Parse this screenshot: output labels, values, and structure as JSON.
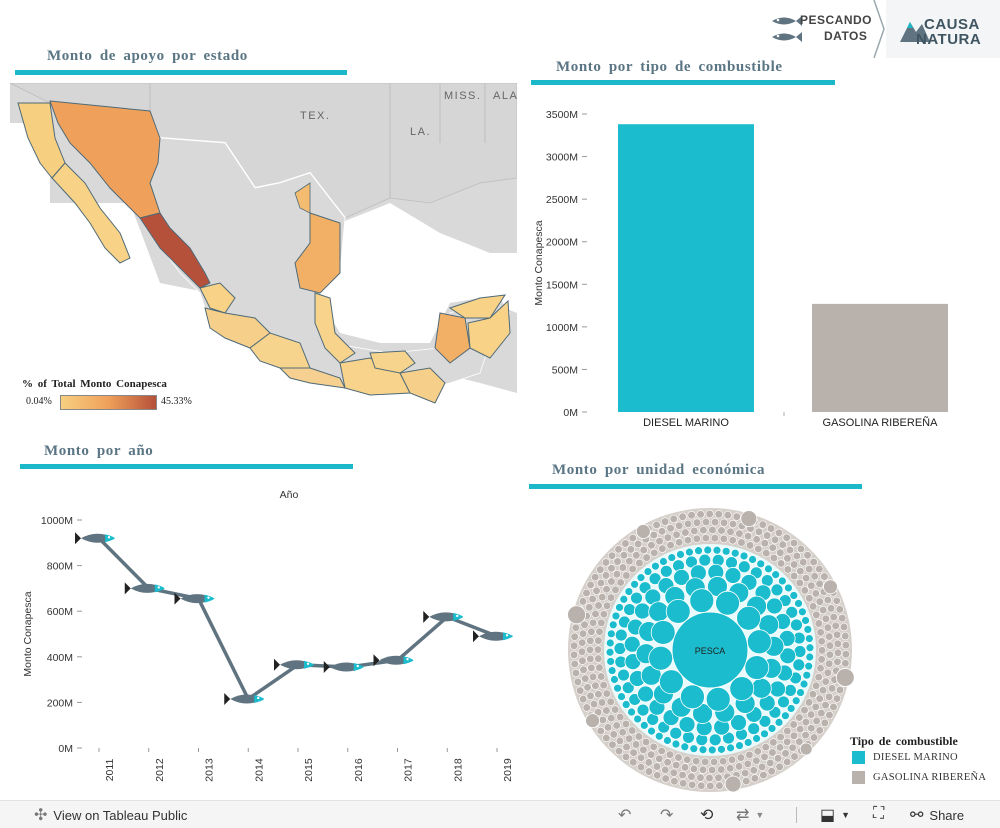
{
  "header": {
    "brand1_line1": "PESCANDO",
    "brand1_line2": "DATOS",
    "brand2_line1": "CAUSA",
    "brand2_line2": "NATURA"
  },
  "map_panel": {
    "title": "Monto de apoyo por estado",
    "labels": {
      "tex": "TEX.",
      "la": "LA.",
      "miss": "MISS.",
      "ala": "ALA"
    },
    "legend": {
      "title": "% of Total Monto Conapesca",
      "min": "0.04%",
      "max": "45.33%",
      "color_low": "#f7cf80",
      "color_high": "#b5503a"
    }
  },
  "fuel_chart": {
    "title": "Monto por tipo de combustible",
    "chart_data": {
      "type": "bar",
      "title": "Monto por tipo de combustible",
      "ylabel": "Monto Conapesca",
      "categories": [
        "DIESEL MARINO",
        "GASOLINA RIBEREÑA"
      ],
      "values": [
        3380,
        1270
      ],
      "ylim": [
        0,
        3500
      ],
      "ticks": [
        0,
        500,
        1000,
        1500,
        2000,
        2500,
        3000,
        3500
      ],
      "tick_labels": [
        "0M",
        "500M",
        "1000M",
        "1500M",
        "2000M",
        "2500M",
        "3000M",
        "3500M"
      ],
      "colors": [
        "#1abccd",
        "#b9b1ab"
      ]
    }
  },
  "year_chart": {
    "title": "Monto por año",
    "chart_data": {
      "type": "line",
      "title": "Año",
      "ylabel": "Monto Conapesca",
      "x": [
        "2011",
        "2012",
        "2013",
        "2014",
        "2015",
        "2016",
        "2017",
        "2018",
        "2019"
      ],
      "values": [
        920,
        700,
        655,
        215,
        365,
        355,
        385,
        575,
        490
      ],
      "ylim": [
        0,
        1000
      ],
      "ticks": [
        0,
        200,
        400,
        600,
        800,
        1000
      ],
      "tick_labels": [
        "0M",
        "200M",
        "400M",
        "600M",
        "800M",
        "1000M"
      ],
      "line_color": "#5f7380",
      "marker": "fish"
    }
  },
  "bubble_panel": {
    "title": "Monto por unidad económica",
    "center_label": "PESCA",
    "legend_title": "Tipo de combustible",
    "legend": [
      {
        "label": "DIESEL MARINO",
        "color": "#1abccd"
      },
      {
        "label": "GASOLINA RIBEREÑA",
        "color": "#b9b1ab"
      }
    ]
  },
  "toolbar": {
    "view_label": "View on Tableau Public",
    "share_label": "Share"
  }
}
